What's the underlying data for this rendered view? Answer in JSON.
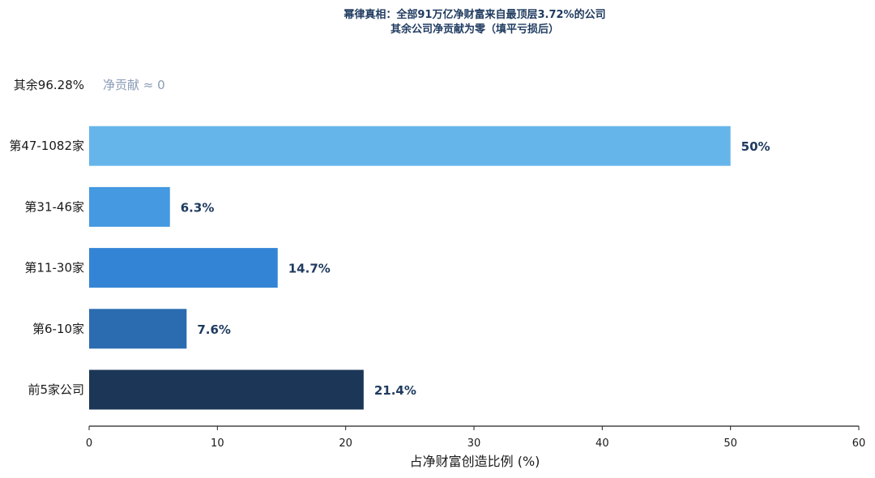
{
  "chart_data": {
    "type": "bar",
    "orientation": "horizontal",
    "title_line1": "幂律真相：全部91万亿净财富来自最顶层3.72%的公司",
    "title_line2": "其余公司净贡献为零（填平亏损后）",
    "xlabel": "占净财富创造比例 (%)",
    "ylabel": "",
    "xlim": [
      0,
      60
    ],
    "xticks": [
      0,
      10,
      20,
      30,
      40,
      50,
      60
    ],
    "grid": false,
    "categories": [
      "前5家公司",
      "第6-10家",
      "第11-30家",
      "第31-46家",
      "第47-1082家",
      "其余96.28%"
    ],
    "values": [
      21.4,
      7.6,
      14.7,
      6.3,
      50,
      0
    ],
    "value_labels": [
      "21.4%",
      "7.6%",
      "14.7%",
      "6.3%",
      "50%",
      "净贡献 ≈ 0"
    ],
    "colors": [
      "#1c3657",
      "#2b6cb0",
      "#3384d4",
      "#4499e0",
      "#65b5ea",
      "#ffffff"
    ]
  }
}
